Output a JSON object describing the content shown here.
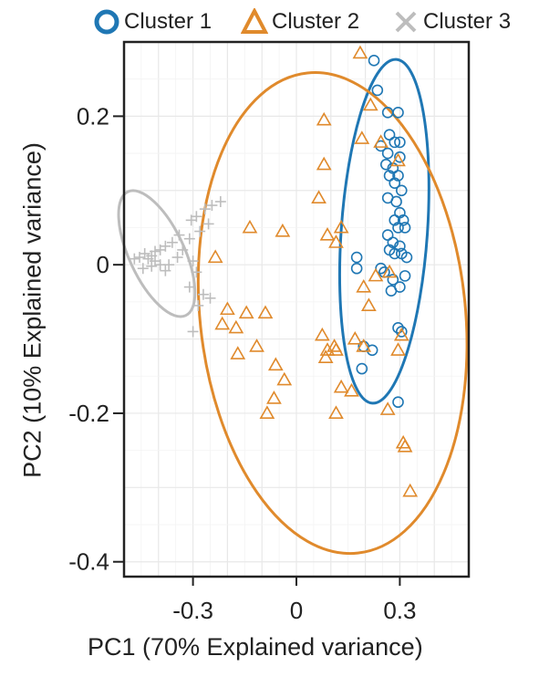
{
  "chart_data": {
    "type": "scatter",
    "xlabel": "PC1 (70% Explained variance)",
    "ylabel": "PC2 (10% Explained variance)",
    "xlim": [
      -0.5,
      0.5
    ],
    "ylim": [
      -0.42,
      0.3
    ],
    "x_ticks": [
      -0.3,
      0,
      0.3
    ],
    "x_tick_labels": [
      "-0.3",
      "0",
      "0.3"
    ],
    "y_ticks": [
      0.2,
      0,
      -0.2,
      -0.4
    ],
    "y_tick_labels": [
      "0.2",
      "0",
      "-0.2",
      "-0.4"
    ],
    "grid": true,
    "legend_position": "top",
    "series": [
      {
        "name": "Cluster 1",
        "marker": "circle",
        "color": "#1f77b4",
        "ellipse": {
          "cx": 0.255,
          "cy": 0.045,
          "rx": 0.125,
          "ry": 0.232,
          "rotation_deg": 4
        },
        "points": [
          [
            0.225,
            0.275
          ],
          [
            0.235,
            0.235
          ],
          [
            0.265,
            0.205
          ],
          [
            0.295,
            0.205
          ],
          [
            0.27,
            0.175
          ],
          [
            0.285,
            0.165
          ],
          [
            0.3,
            0.165
          ],
          [
            0.245,
            0.16
          ],
          [
            0.265,
            0.15
          ],
          [
            0.3,
            0.145
          ],
          [
            0.26,
            0.135
          ],
          [
            0.28,
            0.13
          ],
          [
            0.27,
            0.12
          ],
          [
            0.295,
            0.12
          ],
          [
            0.285,
            0.11
          ],
          [
            0.305,
            0.1
          ],
          [
            0.265,
            0.09
          ],
          [
            0.29,
            0.085
          ],
          [
            0.3,
            0.07
          ],
          [
            0.285,
            0.06
          ],
          [
            0.31,
            0.06
          ],
          [
            0.295,
            0.05
          ],
          [
            0.315,
            0.05
          ],
          [
            0.265,
            0.04
          ],
          [
            0.28,
            0.03
          ],
          [
            0.3,
            0.025
          ],
          [
            0.305,
            0.015
          ],
          [
            0.32,
            0.01
          ],
          [
            0.27,
            0.02
          ],
          [
            0.285,
            0.015
          ],
          [
            0.175,
            0.01
          ],
          [
            0.175,
            -0.005
          ],
          [
            0.245,
            -0.005
          ],
          [
            0.255,
            -0.01
          ],
          [
            0.28,
            -0.02
          ],
          [
            0.315,
            -0.015
          ],
          [
            0.3,
            -0.03
          ],
          [
            0.275,
            -0.035
          ],
          [
            0.295,
            -0.085
          ],
          [
            0.305,
            -0.09
          ],
          [
            0.195,
            -0.11
          ],
          [
            0.22,
            -0.115
          ],
          [
            0.19,
            -0.14
          ],
          [
            0.295,
            -0.185
          ]
        ]
      },
      {
        "name": "Cluster 2",
        "marker": "triangle",
        "color": "#e08a2c",
        "ellipse": {
          "cx": 0.105,
          "cy": -0.065,
          "rx": 0.385,
          "ry": 0.325,
          "rotation_deg": -6
        },
        "points": [
          [
            0.185,
            0.285
          ],
          [
            0.08,
            0.195
          ],
          [
            0.215,
            0.215
          ],
          [
            0.19,
            0.17
          ],
          [
            0.245,
            0.165
          ],
          [
            0.295,
            0.14
          ],
          [
            0.08,
            0.135
          ],
          [
            0.065,
            0.09
          ],
          [
            -0.135,
            0.05
          ],
          [
            -0.04,
            0.045
          ],
          [
            0.13,
            0.05
          ],
          [
            0.09,
            0.04
          ],
          [
            0.115,
            0.03
          ],
          [
            -0.235,
            0.01
          ],
          [
            0.27,
            -0.01
          ],
          [
            0.23,
            -0.015
          ],
          [
            0.195,
            -0.03
          ],
          [
            0.21,
            -0.055
          ],
          [
            -0.2,
            -0.06
          ],
          [
            -0.145,
            -0.065
          ],
          [
            -0.09,
            -0.065
          ],
          [
            -0.215,
            -0.08
          ],
          [
            -0.175,
            -0.085
          ],
          [
            0.075,
            -0.095
          ],
          [
            0.11,
            -0.11
          ],
          [
            0.305,
            -0.095
          ],
          [
            -0.115,
            -0.11
          ],
          [
            -0.17,
            -0.12
          ],
          [
            0.09,
            -0.115
          ],
          [
            0.115,
            -0.115
          ],
          [
            -0.06,
            -0.135
          ],
          [
            0.085,
            -0.125
          ],
          [
            0.17,
            -0.1
          ],
          [
            0.195,
            -0.11
          ],
          [
            0.295,
            -0.115
          ],
          [
            -0.035,
            -0.155
          ],
          [
            0.13,
            -0.165
          ],
          [
            0.16,
            -0.17
          ],
          [
            -0.065,
            -0.18
          ],
          [
            -0.085,
            -0.2
          ],
          [
            0.265,
            -0.195
          ],
          [
            0.115,
            -0.2
          ],
          [
            0.31,
            -0.24
          ],
          [
            0.315,
            -0.245
          ],
          [
            0.33,
            -0.305
          ]
        ]
      },
      {
        "name": "Cluster 3",
        "marker": "cross",
        "color": "#bdbdbd",
        "ellipse": {
          "cx": -0.405,
          "cy": 0.015,
          "rx": 0.08,
          "ry": 0.092,
          "rotation_deg": -25
        },
        "points": [
          [
            -0.22,
            0.085
          ],
          [
            -0.245,
            0.08
          ],
          [
            -0.265,
            0.075
          ],
          [
            -0.29,
            0.065
          ],
          [
            -0.305,
            0.06
          ],
          [
            -0.255,
            0.055
          ],
          [
            -0.28,
            0.045
          ],
          [
            -0.31,
            0.035
          ],
          [
            -0.34,
            0.04
          ],
          [
            -0.36,
            0.03
          ],
          [
            -0.38,
            0.025
          ],
          [
            -0.395,
            0.02
          ],
          [
            -0.41,
            0.018
          ],
          [
            -0.42,
            0.012
          ],
          [
            -0.43,
            0.008
          ],
          [
            -0.41,
            0.005
          ],
          [
            -0.44,
            0.015
          ],
          [
            -0.455,
            0.01
          ],
          [
            -0.47,
            0.008
          ],
          [
            -0.395,
            0.0
          ],
          [
            -0.37,
            0.0
          ],
          [
            -0.42,
            -0.002
          ],
          [
            -0.445,
            -0.005
          ],
          [
            -0.38,
            -0.008
          ],
          [
            -0.345,
            0.01
          ],
          [
            -0.33,
            0.02
          ],
          [
            -0.3,
            0.005
          ],
          [
            -0.29,
            -0.01
          ],
          [
            -0.31,
            -0.03
          ],
          [
            -0.25,
            -0.045
          ],
          [
            -0.27,
            -0.04
          ],
          [
            -0.285,
            -0.055
          ],
          [
            -0.3,
            -0.09
          ]
        ]
      }
    ]
  }
}
